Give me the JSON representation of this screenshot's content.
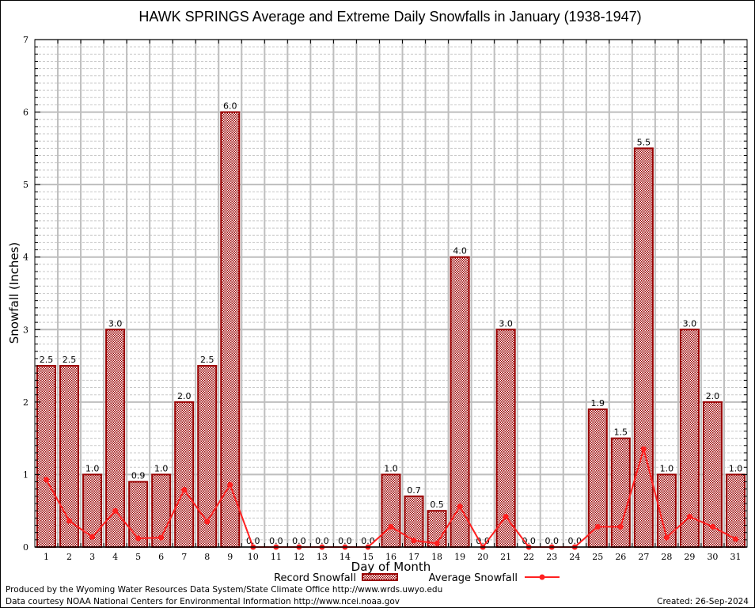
{
  "chart_data": {
    "type": "bar",
    "title": "HAWK SPRINGS Average and Extreme Daily Snowfalls in January (1938-1947)",
    "xlabel": "Day of Month",
    "ylabel": "Snowfall (Inches)",
    "ylim": [
      0,
      7
    ],
    "yticks": [
      "0",
      "1",
      "2",
      "3",
      "4",
      "5",
      "6",
      "7"
    ],
    "grid": true,
    "legend_position": "bottom",
    "categories": [
      "1",
      "2",
      "3",
      "4",
      "5",
      "6",
      "7",
      "8",
      "9",
      "10",
      "11",
      "12",
      "13",
      "14",
      "15",
      "16",
      "17",
      "18",
      "19",
      "20",
      "21",
      "22",
      "23",
      "24",
      "25",
      "26",
      "27",
      "28",
      "29",
      "30",
      "31"
    ],
    "series": [
      {
        "name": "Record Snowfall",
        "type": "bar",
        "color": "#990000",
        "values": [
          2.5,
          2.5,
          1.0,
          3.0,
          0.9,
          1.0,
          2.0,
          2.5,
          6.0,
          0.0,
          0.0,
          0.0,
          0.0,
          0.0,
          0.0,
          1.0,
          0.7,
          0.5,
          4.0,
          0.0,
          3.0,
          0.0,
          0.0,
          0.0,
          1.9,
          1.5,
          5.5,
          1.0,
          3.0,
          2.0,
          1.0
        ],
        "labels": [
          "2.5",
          "2.5",
          "1.0",
          "3.0",
          "0.9",
          "1.0",
          "2.0",
          "2.5",
          "6.0",
          "0.0",
          "0.0",
          "0.0",
          "0.0",
          "0.0",
          "0.0",
          "1.0",
          "0.7",
          "0.5",
          "4.0",
          "0.0",
          "3.0",
          "0.0",
          "0.0",
          "0.0",
          "1.9",
          "1.5",
          "5.5",
          "1.0",
          "3.0",
          "2.0",
          "1.0"
        ]
      },
      {
        "name": "Average Snowfall",
        "type": "line",
        "color": "#ff2020",
        "values": [
          0.93,
          0.36,
          0.14,
          0.5,
          0.12,
          0.13,
          0.79,
          0.35,
          0.86,
          0.0,
          0.0,
          0.0,
          0.0,
          0.0,
          0.0,
          0.28,
          0.09,
          0.05,
          0.56,
          0.0,
          0.42,
          0.0,
          0.0,
          0.0,
          0.28,
          0.28,
          1.35,
          0.13,
          0.42,
          0.28,
          0.11
        ]
      }
    ]
  },
  "footer": {
    "line1": "Produced by the Wyoming Water Resources Data System/State Climate Office http://www.wrds.uwyo.edu",
    "line2": "Data courtesy NOAA National Centers for Environmental Information http://www.ncei.noaa.gov",
    "created": "Created: 26-Sep-2024"
  }
}
